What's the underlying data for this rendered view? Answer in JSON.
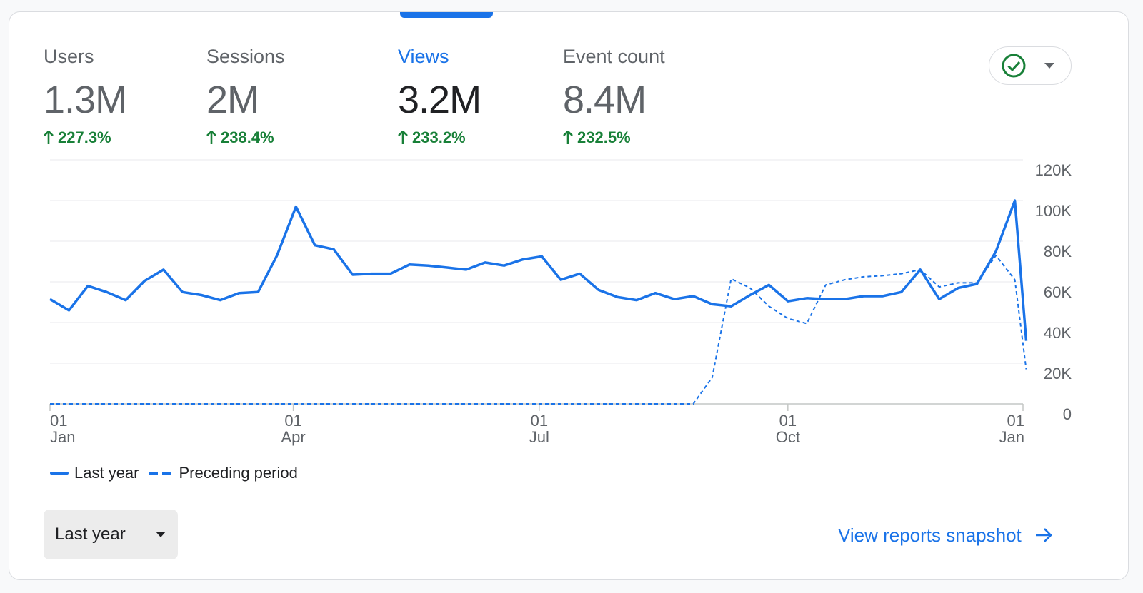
{
  "metrics": [
    {
      "label": "Users",
      "value": "1.3M",
      "change": "227.3%",
      "active": false
    },
    {
      "label": "Sessions",
      "value": "2M",
      "change": "238.4%",
      "active": false
    },
    {
      "label": "Views",
      "value": "3.2M",
      "change": "233.2%",
      "active": true
    },
    {
      "label": "Event count",
      "value": "8.4M",
      "change": "232.5%",
      "active": false
    }
  ],
  "status": {
    "icon": "check-circle-icon",
    "dropdown_icon": "caret-down-icon"
  },
  "colors": {
    "accent": "#1a73e8",
    "positive": "#188038",
    "text": "#202124",
    "muted": "#5f6368",
    "grid": "#e0e0e0"
  },
  "chart_data": {
    "type": "line",
    "ylim": [
      0,
      120000
    ],
    "y_ticks": [
      "120K",
      "100K",
      "80K",
      "60K",
      "40K",
      "20K",
      "0"
    ],
    "x_ticks": [
      {
        "day": "01",
        "month": "Jan"
      },
      {
        "day": "01",
        "month": "Apr"
      },
      {
        "day": "01",
        "month": "Jul"
      },
      {
        "day": "01",
        "month": "Oct"
      },
      {
        "day": "01",
        "month": "Jan"
      }
    ],
    "x_tick_weeks": [
      0,
      12.86,
      25.86,
      39,
      51.43
    ],
    "series": [
      {
        "name": "Last year",
        "style": "solid",
        "x": [
          0,
          1,
          2,
          3,
          4,
          5,
          6,
          7,
          8,
          9,
          10,
          11,
          12,
          13,
          14,
          15,
          16,
          17,
          18,
          19,
          20,
          21,
          22,
          23,
          24,
          25,
          26,
          27,
          28,
          29,
          30,
          31,
          32,
          33,
          34,
          35,
          36,
          37,
          38,
          39,
          40,
          41,
          42,
          43,
          44,
          45,
          46,
          47,
          48,
          49,
          50,
          51,
          51.6
        ],
        "y": [
          51500,
          46000,
          58000,
          55000,
          51000,
          60500,
          66000,
          55000,
          53500,
          51000,
          54500,
          55000,
          73000,
          97000,
          78000,
          76000,
          63500,
          64000,
          64000,
          68500,
          68000,
          67000,
          66000,
          69500,
          68000,
          71000,
          72500,
          61000,
          64000,
          56000,
          52500,
          51000,
          54500,
          51500,
          53000,
          49000,
          48000,
          53500,
          58500,
          50500,
          52000,
          51500,
          51500,
          53000,
          53000,
          55000,
          66000,
          51500,
          57000,
          59000,
          75000,
          100000,
          31000
        ]
      },
      {
        "name": "Preceding period",
        "style": "dashed",
        "x": [
          0,
          5,
          10,
          15,
          20,
          25,
          30,
          33,
          34,
          35,
          36,
          37,
          38,
          39,
          40,
          41,
          42,
          43,
          44,
          45,
          46,
          47,
          48,
          49,
          50,
          51,
          51.6
        ],
        "y": [
          0,
          0,
          0,
          0,
          0,
          0,
          0,
          0,
          0,
          13000,
          61500,
          57000,
          48000,
          42000,
          39500,
          58500,
          61000,
          62500,
          63000,
          64000,
          66000,
          57500,
          59500,
          59500,
          73000,
          61000,
          17000
        ]
      }
    ]
  },
  "legend": {
    "last_year": "Last year",
    "preceding": "Preceding period"
  },
  "period_select": {
    "label": "Last year"
  },
  "snapshot_link": {
    "label": "View reports snapshot"
  }
}
